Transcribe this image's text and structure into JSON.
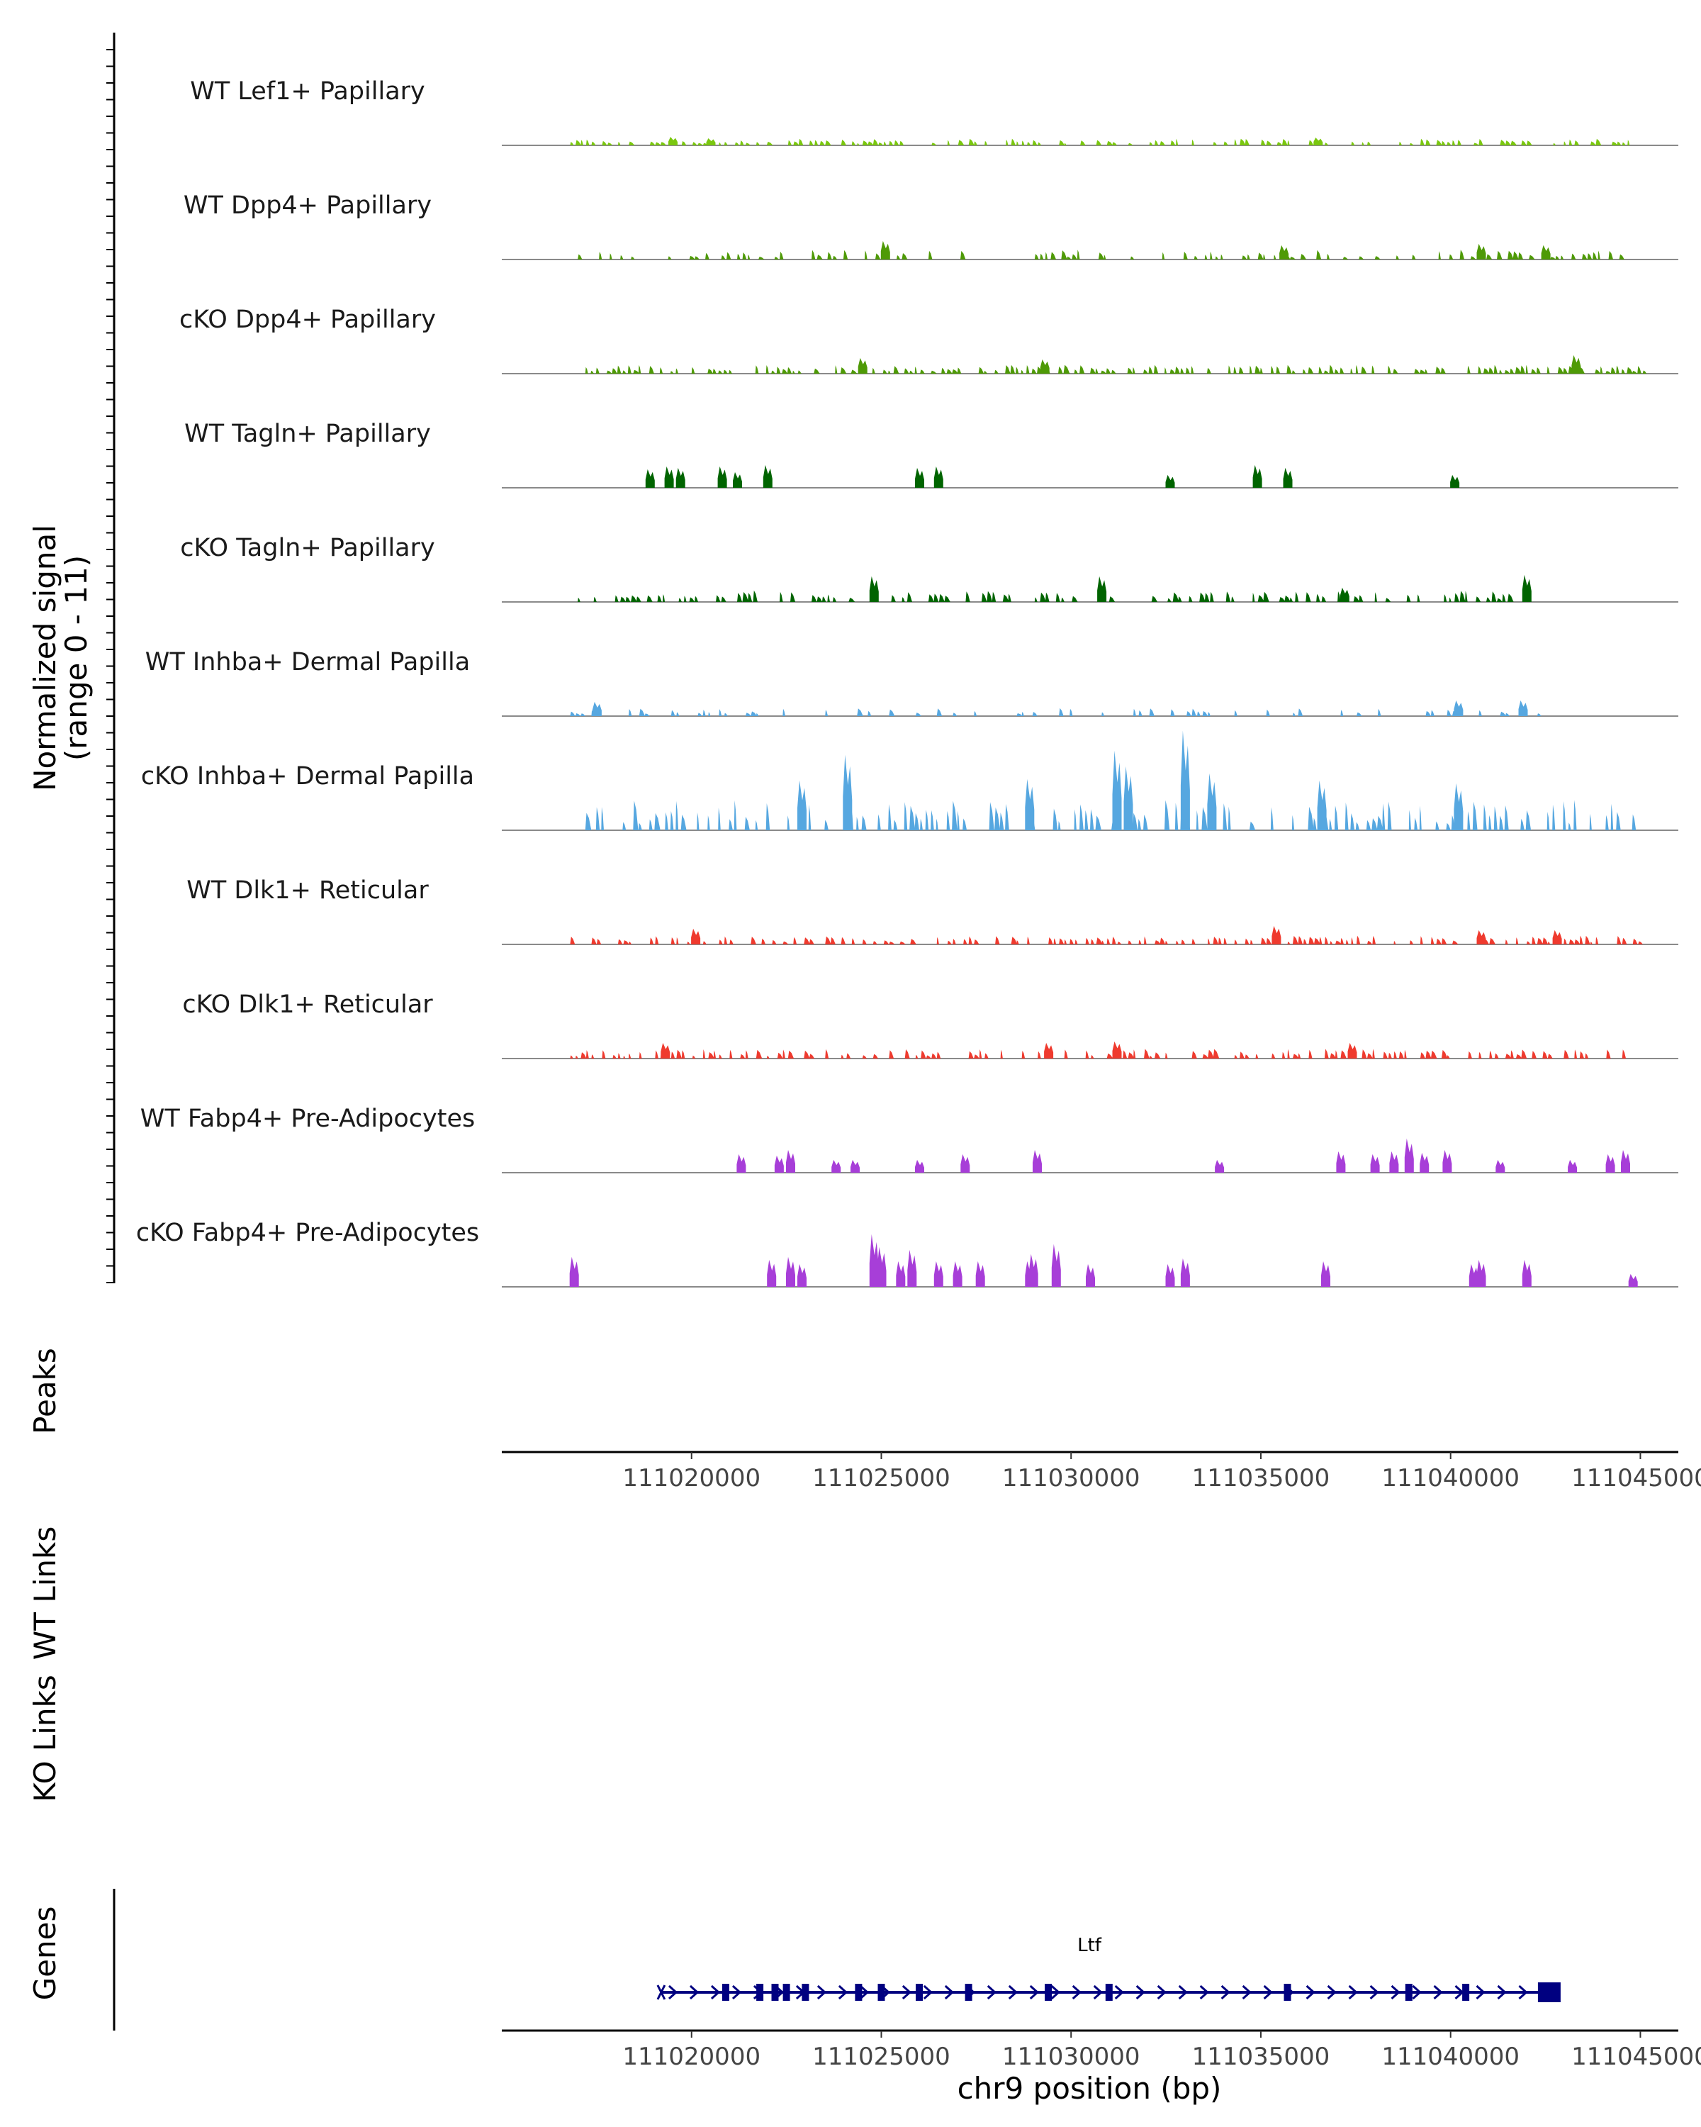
{
  "chart_data": {
    "type": "area",
    "title": "",
    "signal_axis_label": [
      "Normalized signal",
      "(range 0 - 11)"
    ],
    "ylim": [
      0,
      11
    ],
    "xlim": [
      111015000,
      111046000
    ],
    "xlabel": "chr9 position (bp)",
    "x_ticks": [
      111020000,
      111025000,
      111030000,
      111035000,
      111040000,
      111045000
    ],
    "x_tick_labels": [
      "111020000",
      "111025000",
      "111030000",
      "111035000",
      "111040000",
      "111045000"
    ],
    "tracks": [
      {
        "name": "WT Lef1+ Papillary",
        "color": "#7ac70f",
        "seed": 11,
        "density": 0.55,
        "base": 0.25,
        "amp": 0.5,
        "start": 111016800,
        "end": 111044800,
        "peaks": [
          [
            111019500,
            0.6
          ],
          [
            111020500,
            0.5
          ],
          [
            111036500,
            0.55
          ]
        ]
      },
      {
        "name": "WT Dpp4+ Papillary",
        "color": "#4e9a06",
        "seed": 23,
        "density": 0.35,
        "base": 0.3,
        "amp": 0.8,
        "start": 111017000,
        "end": 111045200,
        "peaks": [
          [
            111025100,
            1.3
          ],
          [
            111035600,
            1.0
          ],
          [
            111040800,
            1.1
          ],
          [
            111042500,
            1.0
          ]
        ]
      },
      {
        "name": "cKO Dpp4+ Papillary",
        "color": "#4e9a06",
        "seed": 37,
        "density": 0.7,
        "base": 0.3,
        "amp": 0.7,
        "start": 111017200,
        "end": 111045200,
        "peaks": [
          [
            111024500,
            1.1
          ],
          [
            111029300,
            1.0
          ],
          [
            111043300,
            1.3
          ]
        ]
      },
      {
        "name": "WT Tagln+ Papillary",
        "color": "#006400",
        "seed": 41,
        "density": 0.0,
        "base": 0.3,
        "amp": 0.3,
        "start": 111018800,
        "end": 111040200,
        "peaks": [
          [
            111018900,
            1.3
          ],
          [
            111019400,
            1.5
          ],
          [
            111019700,
            1.4
          ],
          [
            111020800,
            1.5
          ],
          [
            111021200,
            1.1
          ],
          [
            111022000,
            1.6
          ],
          [
            111026000,
            1.4
          ],
          [
            111026500,
            1.5
          ],
          [
            111032600,
            0.9
          ],
          [
            111034900,
            1.6
          ],
          [
            111035700,
            1.4
          ],
          [
            111040100,
            0.9
          ]
        ]
      },
      {
        "name": "cKO Tagln+ Papillary",
        "color": "#006400",
        "seed": 53,
        "density": 0.45,
        "base": 0.4,
        "amp": 0.9,
        "start": 111017000,
        "end": 111042000,
        "peaks": [
          [
            111024800,
            1.8
          ],
          [
            111030800,
            1.8
          ],
          [
            111037200,
            1.0
          ],
          [
            111042000,
            1.9
          ]
        ]
      },
      {
        "name": "WT Inhba+ Dermal Papilla",
        "color": "#56a7e0",
        "seed": 67,
        "density": 0.3,
        "base": 0.3,
        "amp": 0.6,
        "start": 111016800,
        "end": 111042500,
        "peaks": [
          [
            111017500,
            1.0
          ],
          [
            111040200,
            1.1
          ],
          [
            111041900,
            1.1
          ]
        ]
      },
      {
        "name": "cKO Inhba+ Dermal Papilla",
        "color": "#56a7e0",
        "seed": 79,
        "density": 0.55,
        "base": 0.8,
        "amp": 2.6,
        "start": 111017200,
        "end": 111044800,
        "peaks": [
          [
            111022900,
            3.5
          ],
          [
            111024100,
            5.3
          ],
          [
            111028900,
            3.6
          ],
          [
            111031200,
            5.6
          ],
          [
            111031500,
            4.5
          ],
          [
            111033000,
            7.0
          ],
          [
            111033700,
            4.0
          ],
          [
            111036600,
            3.5
          ],
          [
            111040200,
            3.3
          ]
        ]
      },
      {
        "name": "WT Dlk1+ Reticular",
        "color": "#ef3a2e",
        "seed": 83,
        "density": 0.6,
        "base": 0.3,
        "amp": 0.7,
        "start": 111016800,
        "end": 111045200,
        "peaks": [
          [
            111020100,
            1.1
          ],
          [
            111035400,
            1.3
          ],
          [
            111040800,
            1.0
          ],
          [
            111042800,
            1.0
          ]
        ]
      },
      {
        "name": "cKO Dlk1+ Reticular",
        "color": "#ef3a2e",
        "seed": 97,
        "density": 0.6,
        "base": 0.3,
        "amp": 0.8,
        "start": 111016800,
        "end": 111044600,
        "peaks": [
          [
            111019300,
            1.1
          ],
          [
            111029400,
            1.1
          ],
          [
            111031200,
            1.2
          ],
          [
            111037400,
            1.1
          ]
        ]
      },
      {
        "name": "WT Fabp4+ Pre-Adipocytes",
        "color": "#a73ed8",
        "seed": 101,
        "density": 0.0,
        "base": 0.3,
        "amp": 0.3,
        "start": 111021000,
        "end": 111045000,
        "peaks": [
          [
            111021300,
            1.3
          ],
          [
            111022300,
            1.2
          ],
          [
            111022600,
            1.6
          ],
          [
            111023800,
            0.9
          ],
          [
            111024300,
            0.9
          ],
          [
            111026000,
            0.9
          ],
          [
            111027200,
            1.3
          ],
          [
            111029100,
            1.6
          ],
          [
            111033900,
            0.9
          ],
          [
            111037100,
            1.5
          ],
          [
            111038000,
            1.3
          ],
          [
            111038500,
            1.5
          ],
          [
            111038900,
            2.4
          ],
          [
            111039300,
            1.4
          ],
          [
            111039900,
            1.6
          ],
          [
            111041300,
            0.9
          ],
          [
            111043200,
            0.9
          ],
          [
            111044200,
            1.3
          ],
          [
            111044600,
            1.6
          ]
        ]
      },
      {
        "name": "cKO Fabp4+ Pre-Adipocytes",
        "color": "#a73ed8",
        "seed": 113,
        "density": 0.0,
        "base": 0.3,
        "amp": 0.3,
        "start": 111016800,
        "end": 111045000,
        "peaks": [
          [
            111016900,
            2.1
          ],
          [
            111022100,
            1.9
          ],
          [
            111022600,
            2.1
          ],
          [
            111022900,
            1.6
          ],
          [
            111024800,
            3.7
          ],
          [
            111025000,
            2.8
          ],
          [
            111025500,
            1.8
          ],
          [
            111025800,
            2.6
          ],
          [
            111026500,
            1.8
          ],
          [
            111027000,
            1.8
          ],
          [
            111027600,
            1.8
          ],
          [
            111028900,
            1.8
          ],
          [
            111029000,
            2.3
          ],
          [
            111029600,
            3.0
          ],
          [
            111030500,
            1.6
          ],
          [
            111032600,
            1.6
          ],
          [
            111033000,
            2.0
          ],
          [
            111036700,
            1.8
          ],
          [
            111040600,
            1.6
          ],
          [
            111040800,
            1.9
          ],
          [
            111042000,
            1.9
          ],
          [
            111044800,
            0.9
          ]
        ]
      }
    ],
    "side_panels": [
      "Peaks",
      "WT Links",
      "KO Links",
      "Genes"
    ],
    "gene": {
      "name": "Ltf",
      "color": "#000080",
      "start": 111019200,
      "end": 111042700,
      "exons": [
        111020900,
        111021800,
        111022200,
        111022500,
        111023000,
        111024400,
        111025000,
        111026000,
        111027300,
        111029400,
        111031000,
        111035700,
        111038900,
        111040400,
        111042300
      ]
    }
  }
}
